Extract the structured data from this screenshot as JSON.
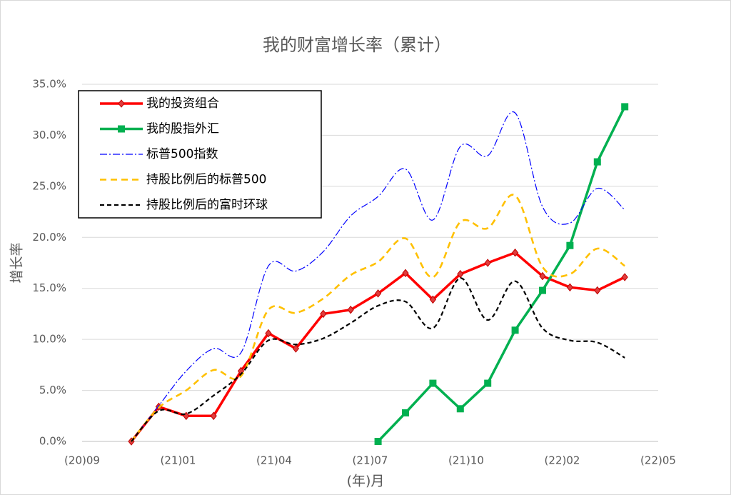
{
  "chart_data": {
    "type": "line",
    "title": "我的财富增长率（累计）",
    "y_label": "增长率",
    "x_label": "(年)月",
    "categories": [
      null,
      null,
      null,
      null,
      null,
      null,
      null,
      null,
      null,
      null,
      null,
      null,
      null,
      null,
      null,
      null,
      null,
      null,
      null
    ],
    "xtick_labels": [
      "(20)09",
      "(21)01",
      "(21)04",
      "(21)07",
      "(21)10",
      "(22)02",
      "(22)05"
    ],
    "ylim": [
      0,
      35
    ],
    "yticks": [
      {
        "value": 0,
        "label": "0.0%"
      },
      {
        "value": 5,
        "label": "5.0%"
      },
      {
        "value": 10,
        "label": "10.0%"
      },
      {
        "value": 15,
        "label": "15.0%"
      },
      {
        "value": 20,
        "label": "20.0%"
      },
      {
        "value": 25,
        "label": "25.0%"
      },
      {
        "value": 30,
        "label": "30.0%"
      },
      {
        "value": 35,
        "label": "35.0%"
      }
    ],
    "grid": true,
    "legend": "top-left",
    "series": [
      {
        "name": "我的投资组合",
        "color": "#ff0000",
        "marker": "diamond",
        "smooth": false,
        "values": [
          0,
          3.4,
          2.5,
          2.5,
          6.9,
          10.6,
          9.1,
          12.5,
          12.9,
          14.5,
          16.5,
          13.9,
          16.4,
          17.5,
          18.5,
          16.2,
          15.1,
          14.8,
          16.1
        ]
      },
      {
        "name": "我的股指外汇",
        "color": "#00b050",
        "marker": "square",
        "smooth": false,
        "values": [
          null,
          null,
          null,
          null,
          null,
          null,
          null,
          null,
          null,
          0,
          2.8,
          5.7,
          3.2,
          5.7,
          10.9,
          14.8,
          19.2,
          27.4,
          32.8
        ]
      },
      {
        "name": "标普500指数",
        "color": "#0000ff",
        "dash": "dashdot",
        "smooth": true,
        "values": [
          0,
          3.5,
          6.9,
          9.1,
          8.7,
          17.2,
          16.7,
          18.6,
          22.1,
          24.0,
          26.7,
          21.7,
          28.9,
          28.0,
          32.2,
          23.0,
          21.4,
          24.8,
          22.7
        ]
      },
      {
        "name": "持股比例后的标普500",
        "color": "#ffc000",
        "dash": "dash",
        "smooth": true,
        "values": [
          0,
          3.3,
          5.0,
          7.0,
          6.4,
          12.9,
          12.6,
          14.0,
          16.3,
          17.6,
          19.9,
          16.1,
          21.5,
          20.9,
          24.1,
          17.1,
          16.4,
          18.9,
          17.2
        ]
      },
      {
        "name": "持股比例后的富时环球",
        "color": "#000000",
        "dash": "shortdash",
        "smooth": true,
        "values": [
          0,
          3.0,
          2.7,
          4.5,
          6.6,
          9.9,
          9.5,
          10.1,
          11.6,
          13.3,
          13.7,
          11.1,
          16.0,
          11.9,
          15.7,
          11.1,
          9.9,
          9.7,
          8.2
        ]
      }
    ]
  }
}
